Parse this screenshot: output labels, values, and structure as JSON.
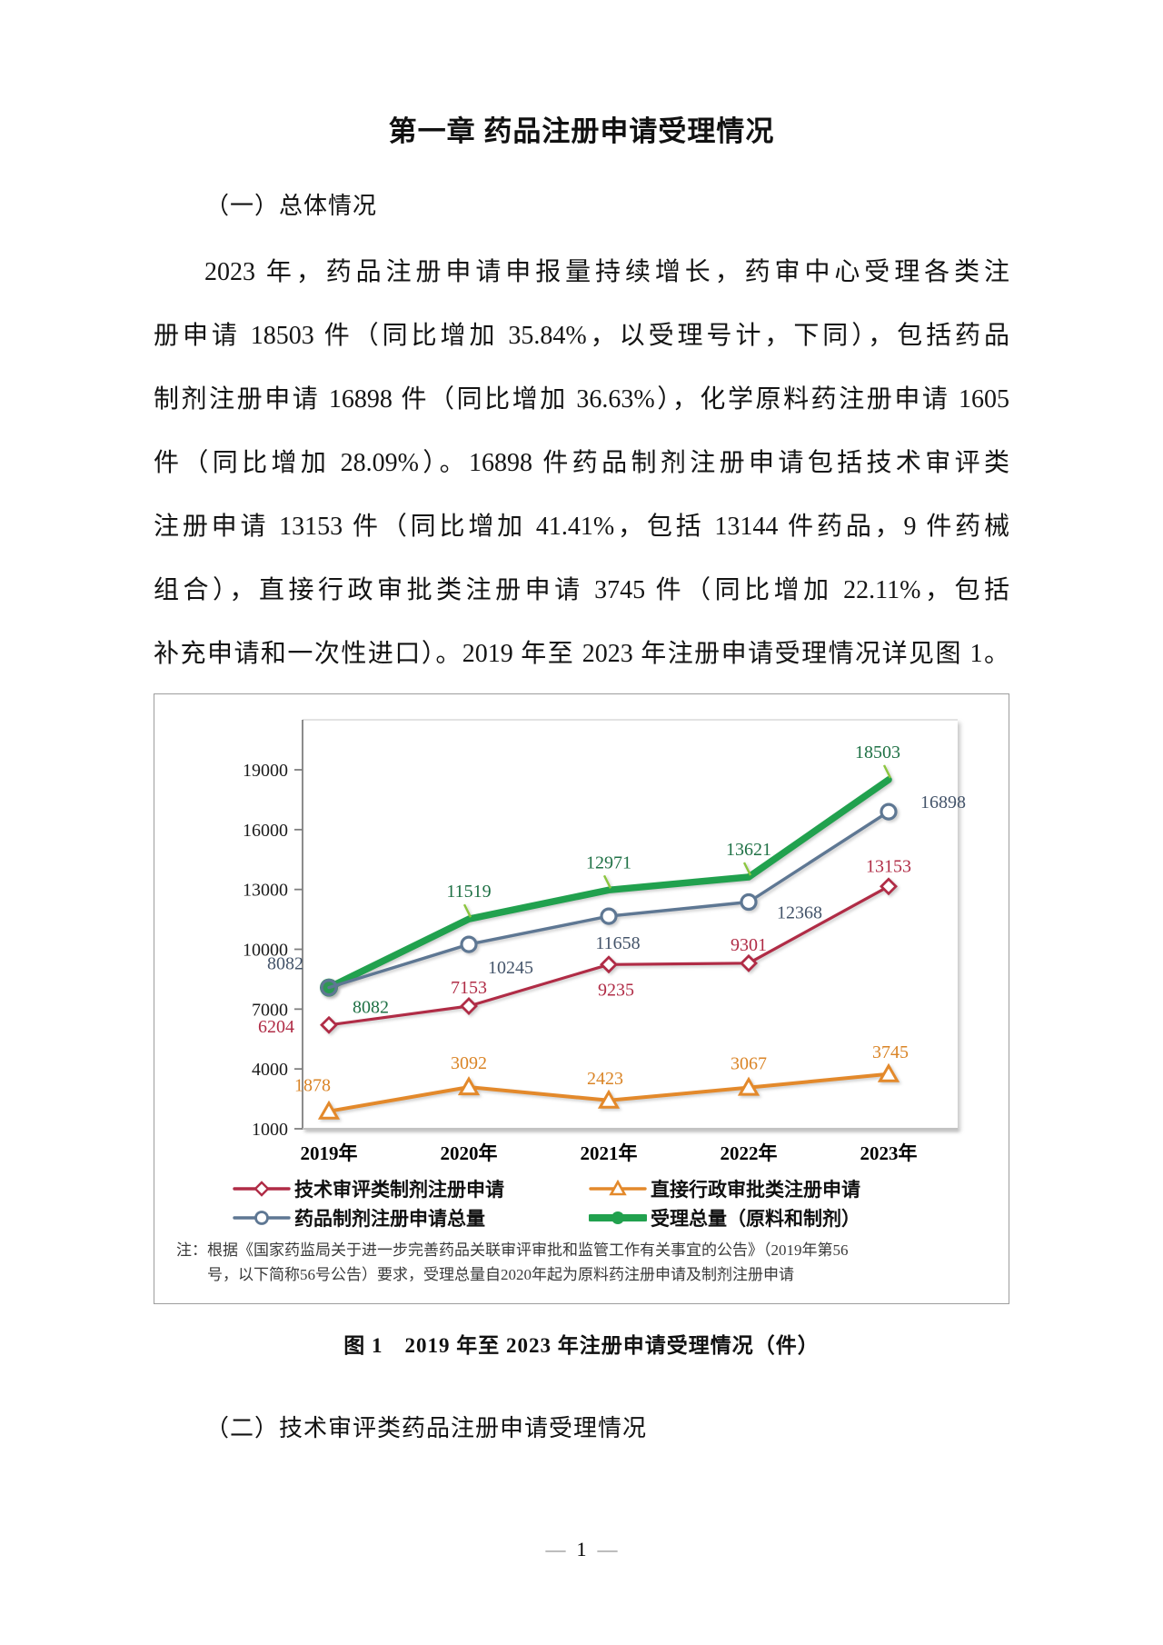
{
  "doc": {
    "title": "第一章 药品注册申请受理情况",
    "section1_heading": "（一）总体情况",
    "paragraph_lines": [
      "2023 年，药品注册申请申报量持续增长，药审中心受理各类注",
      "册申请 18503 件（同比增加 35.84%，以受理号计，下同），包括药品",
      "制剂注册申请 16898 件（同比增加 36.63%），化学原料药注册申请 1605",
      "件（同比增加 28.09%）。16898 件药品制剂注册申请包括技术审评类",
      "注册申请 13153 件（同比增加 41.41%，包括 13144 件药品，9 件药械",
      "组合），直接行政审批类注册申请 3745 件（同比增加 22.11%，包括",
      "补充申请和一次性进口）。2019 年至 2023 年注册申请受理情况详见图 1。"
    ],
    "figure_caption": "图 1　2019 年至 2023 年注册申请受理情况（件）",
    "section2_heading": "（二）技术审评类药品注册申请受理情况",
    "footer": {
      "dash": "—",
      "page_number": "1"
    }
  },
  "chart_data": {
    "type": "line",
    "categories": [
      "2019年",
      "2020年",
      "2021年",
      "2022年",
      "2023年"
    ],
    "series": [
      {
        "id": "red",
        "name": "技术审评类制剂注册申请",
        "values": [
          6204,
          7153,
          9235,
          9301,
          13153
        ],
        "color": "#B02C46",
        "label_color": "#B02C46",
        "marker": "diamond"
      },
      {
        "id": "slate",
        "name": "药品制剂注册申请总量",
        "values": [
          8082,
          10245,
          11658,
          12368,
          16898
        ],
        "color": "#5E7793",
        "label_color": "#44546A",
        "marker": "circle"
      },
      {
        "id": "orange",
        "name": "直接行政审批类注册申请",
        "values": [
          1878,
          3092,
          2423,
          3067,
          3745
        ],
        "color": "#E3892B",
        "label_color": "#DA8426",
        "marker": "triangle"
      },
      {
        "id": "green",
        "name": "受理总量（原料和制剂）",
        "values": [
          8082,
          11519,
          12971,
          13621,
          18503
        ],
        "color": "#21A14E",
        "label_color": "#1F7145",
        "marker": "dot",
        "leader_color": "#8CC63F",
        "thick": true
      }
    ],
    "y_ticks": [
      1000,
      4000,
      7000,
      10000,
      13000,
      16000,
      19000
    ],
    "ylim": [
      1000,
      19000
    ],
    "grid": false,
    "legend_position": "bottom",
    "note_lines": [
      "注：根据《国家药监局关于进一步完善药品关联审评审批和监管工作有关事宜的公告》（2019年第56",
      "号，以下简称56号公告）要求，受理总量自2020年起为原料药注册申请及制剂注册申请"
    ],
    "axis_color": "#7F7F7F",
    "category_axis_color": "#C2C2C2",
    "plot_border_color": "#DADADA"
  }
}
